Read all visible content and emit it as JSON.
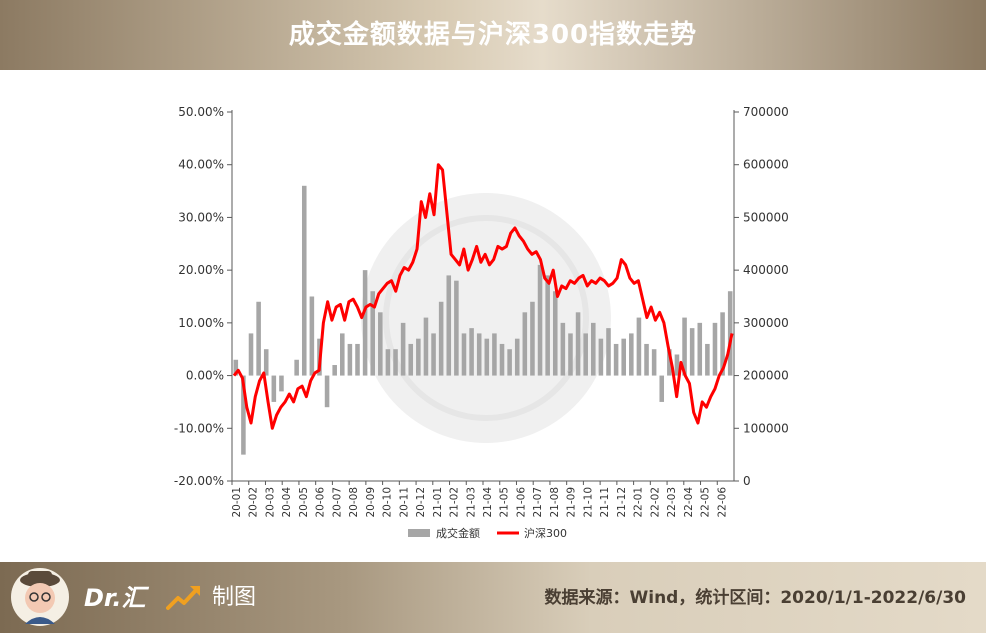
{
  "title": "成交金额数据与沪深300指数走势",
  "chart_data": {
    "type": "bar+line",
    "left_axis": {
      "min": -0.2,
      "max": 0.5,
      "ticks": [
        "50.00%",
        "40.00%",
        "30.00%",
        "20.00%",
        "10.00%",
        "0.00%",
        "-10.00%",
        "-20.00%"
      ]
    },
    "right_axis": {
      "min": 0,
      "max": 700000,
      "ticks": [
        "700000",
        "600000",
        "500000",
        "400000",
        "300000",
        "200000",
        "100000",
        "0"
      ]
    },
    "x_labels": [
      "20-01",
      "20-02",
      "20-03",
      "20-04",
      "20-05",
      "20-06",
      "20-07",
      "20-08",
      "20-09",
      "20-10",
      "20-11",
      "20-12",
      "21-01",
      "21-02",
      "21-03",
      "21-04",
      "21-05",
      "21-06",
      "21-07",
      "21-08",
      "21-09",
      "21-10",
      "21-11",
      "21-12",
      "22-01",
      "22-02",
      "22-03",
      "22-04",
      "22-05",
      "22-06"
    ],
    "series": [
      {
        "name": "成交金额",
        "color": "#a6a6a6",
        "axis": "left",
        "values": [
          0.03,
          -0.15,
          0.08,
          0.14,
          0.05,
          -0.05,
          -0.03,
          0.0,
          0.03,
          0.36,
          0.15,
          0.07,
          -0.06,
          0.02,
          0.08,
          0.06,
          0.06,
          0.2,
          0.16,
          0.12,
          0.05,
          0.05,
          0.1,
          0.06,
          0.07,
          0.11,
          0.08,
          0.14,
          0.19,
          0.18,
          0.08,
          0.09,
          0.08,
          0.07,
          0.08,
          0.06,
          0.05,
          0.07,
          0.12,
          0.14,
          0.21,
          0.19,
          0.16,
          0.1,
          0.08,
          0.12,
          0.08,
          0.1,
          0.07,
          0.09,
          0.06,
          0.07,
          0.08,
          0.11,
          0.06,
          0.05,
          -0.05,
          0.05,
          0.04,
          0.11,
          0.09,
          0.1,
          0.06,
          0.1,
          0.12,
          0.16
        ]
      },
      {
        "name": "沪深300",
        "color": "#ff0000",
        "axis": "right",
        "values": [
          [
            0,
            200000
          ],
          [
            1,
            210000
          ],
          [
            2,
            195000
          ],
          [
            3,
            140000
          ],
          [
            4,
            110000
          ],
          [
            5,
            160000
          ],
          [
            6,
            190000
          ],
          [
            7,
            205000
          ],
          [
            8,
            150000
          ],
          [
            9,
            100000
          ],
          [
            10,
            125000
          ],
          [
            11,
            140000
          ],
          [
            12,
            150000
          ],
          [
            13,
            165000
          ],
          [
            14,
            150000
          ],
          [
            15,
            175000
          ],
          [
            16,
            180000
          ],
          [
            17,
            160000
          ],
          [
            18,
            190000
          ],
          [
            19,
            205000
          ],
          [
            20,
            210000
          ],
          [
            21,
            300000
          ],
          [
            22,
            340000
          ],
          [
            23,
            305000
          ],
          [
            24,
            330000
          ],
          [
            25,
            335000
          ],
          [
            26,
            305000
          ],
          [
            27,
            340000
          ],
          [
            28,
            345000
          ],
          [
            29,
            330000
          ],
          [
            30,
            310000
          ],
          [
            31,
            330000
          ],
          [
            32,
            335000
          ],
          [
            33,
            330000
          ],
          [
            34,
            355000
          ],
          [
            35,
            365000
          ],
          [
            36,
            375000
          ],
          [
            37,
            380000
          ],
          [
            38,
            360000
          ],
          [
            39,
            390000
          ],
          [
            40,
            405000
          ],
          [
            41,
            400000
          ],
          [
            42,
            415000
          ],
          [
            43,
            440000
          ],
          [
            44,
            530000
          ],
          [
            45,
            500000
          ],
          [
            46,
            545000
          ],
          [
            47,
            505000
          ],
          [
            48,
            600000
          ],
          [
            49,
            590000
          ],
          [
            50,
            510000
          ],
          [
            51,
            430000
          ],
          [
            52,
            420000
          ],
          [
            53,
            410000
          ],
          [
            54,
            440000
          ],
          [
            55,
            400000
          ],
          [
            56,
            420000
          ],
          [
            57,
            445000
          ],
          [
            58,
            415000
          ],
          [
            59,
            430000
          ],
          [
            60,
            410000
          ],
          [
            61,
            420000
          ],
          [
            62,
            445000
          ],
          [
            63,
            440000
          ],
          [
            64,
            445000
          ],
          [
            65,
            470000
          ],
          [
            66,
            480000
          ],
          [
            67,
            465000
          ],
          [
            68,
            455000
          ],
          [
            69,
            440000
          ],
          [
            70,
            430000
          ],
          [
            71,
            435000
          ],
          [
            72,
            420000
          ],
          [
            73,
            385000
          ],
          [
            74,
            375000
          ],
          [
            75,
            400000
          ],
          [
            76,
            350000
          ],
          [
            77,
            370000
          ],
          [
            78,
            365000
          ],
          [
            79,
            380000
          ],
          [
            80,
            375000
          ],
          [
            81,
            385000
          ],
          [
            82,
            390000
          ],
          [
            83,
            370000
          ],
          [
            84,
            380000
          ],
          [
            85,
            375000
          ],
          [
            86,
            385000
          ],
          [
            87,
            380000
          ],
          [
            88,
            370000
          ],
          [
            89,
            375000
          ],
          [
            90,
            385000
          ],
          [
            91,
            420000
          ],
          [
            92,
            410000
          ],
          [
            93,
            385000
          ],
          [
            94,
            375000
          ],
          [
            95,
            380000
          ],
          [
            96,
            345000
          ],
          [
            97,
            310000
          ],
          [
            98,
            330000
          ],
          [
            99,
            305000
          ],
          [
            100,
            320000
          ],
          [
            101,
            300000
          ],
          [
            102,
            255000
          ],
          [
            103,
            215000
          ],
          [
            104,
            160000
          ],
          [
            105,
            225000
          ],
          [
            106,
            200000
          ],
          [
            107,
            185000
          ],
          [
            108,
            130000
          ],
          [
            109,
            110000
          ],
          [
            110,
            150000
          ],
          [
            111,
            140000
          ],
          [
            112,
            160000
          ],
          [
            113,
            175000
          ],
          [
            114,
            200000
          ],
          [
            115,
            215000
          ],
          [
            116,
            240000
          ],
          [
            117,
            280000
          ]
        ]
      }
    ],
    "legend": "bottom"
  },
  "footer": {
    "brand": "Dr.汇",
    "made_by": "制图",
    "source": "数据来源：Wind，统计区间：2020/1/1-2022/6/30"
  },
  "icons": {
    "avatar": "cartoon-doctor-avatar",
    "trend": "trend-up-arrow-icon"
  },
  "colors": {
    "bar": "#a6a6a6",
    "line": "#ff0000",
    "header_text": "#ffffff"
  }
}
